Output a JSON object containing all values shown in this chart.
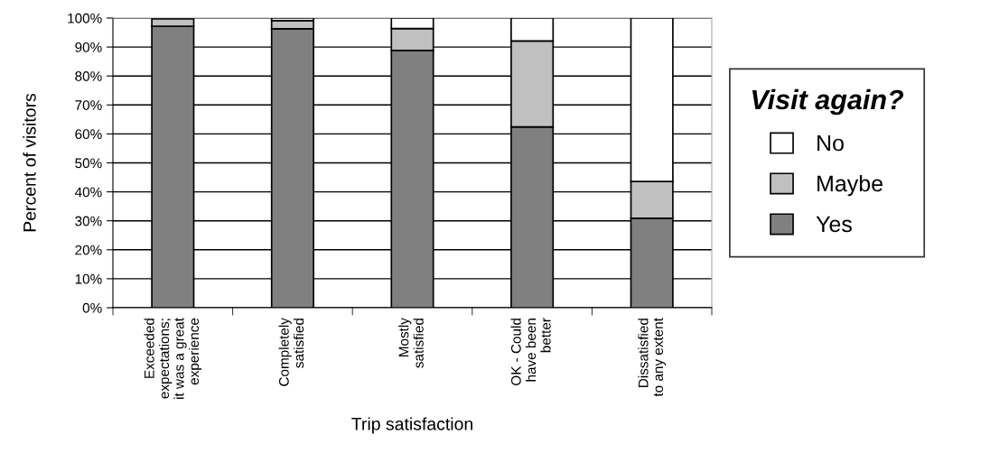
{
  "chart_data": {
    "type": "bar",
    "stacked": true,
    "xlabel": "Trip satisfaction",
    "ylabel": "Percent of visitors",
    "legend_title": "Visit again?",
    "categories": [
      "Exceeded\nexpectations;\nit was a great\nexperience",
      "Completely\nsatisfied",
      "Mostly\nsatisfied",
      "OK - Could\nhave been\nbetter",
      "Dissatisfied\nto any extent"
    ],
    "series": [
      {
        "name": "Yes",
        "color": "#808080",
        "values": [
          97.2,
          96.3,
          88.8,
          62.4,
          30.9
        ]
      },
      {
        "name": "Maybe",
        "color": "#c0c0c0",
        "values": [
          2.5,
          2.8,
          7.6,
          29.7,
          12.7
        ]
      },
      {
        "name": "No",
        "color": "#ffffff",
        "values": [
          null,
          0.9,
          3.6,
          7.9,
          56.4
        ]
      }
    ],
    "ylim": [
      0,
      100
    ],
    "yticks": [
      {
        "value": 0,
        "label": "0%"
      },
      {
        "value": 10,
        "label": "10%"
      },
      {
        "value": 20,
        "label": "20%"
      },
      {
        "value": 30,
        "label": "30%"
      },
      {
        "value": 40,
        "label": "40%"
      },
      {
        "value": 50,
        "label": "50%"
      },
      {
        "value": 60,
        "label": "60%"
      },
      {
        "value": 70,
        "label": "70%"
      },
      {
        "value": 80,
        "label": "80%"
      },
      {
        "value": 90,
        "label": "90%"
      },
      {
        "value": 100,
        "label": "100%"
      }
    ],
    "grid": "y",
    "legend": "right"
  }
}
